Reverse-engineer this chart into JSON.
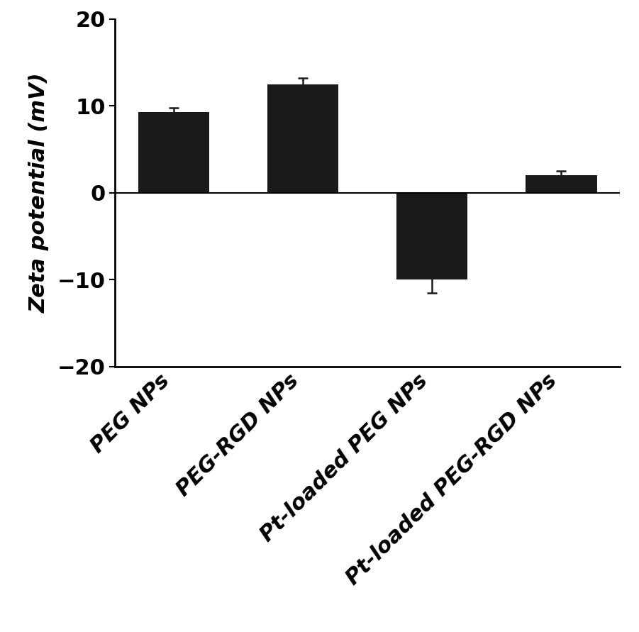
{
  "categories": [
    "PEG NPs",
    "PEG-RGD NPs",
    "Pt-loaded PEG NPs",
    "Pt-loaded PEG-RGD NPs"
  ],
  "values": [
    9.3,
    12.5,
    -10.0,
    2.0
  ],
  "errors": [
    0.5,
    0.7,
    1.5,
    0.5
  ],
  "bar_color": "#1a1a1a",
  "ylabel": "Zeta potential (mV)",
  "ylim": [
    -20,
    20
  ],
  "yticks": [
    -20,
    -10,
    0,
    10,
    20
  ],
  "bar_width": 0.55,
  "background_color": "#ffffff",
  "tick_label_fontsize": 22,
  "ylabel_fontsize": 22,
  "error_capsize": 5,
  "error_linewidth": 1.8,
  "error_color": "#1a1a1a"
}
